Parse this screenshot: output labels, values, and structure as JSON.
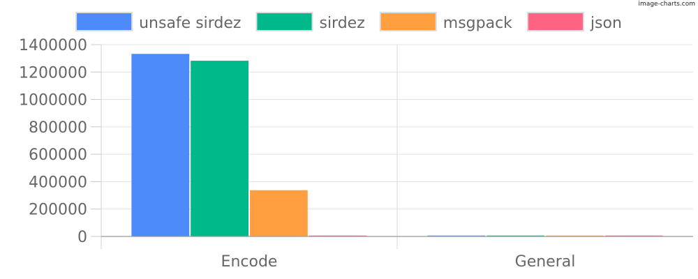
{
  "watermark": "image-charts.com",
  "chart_data": {
    "type": "bar",
    "categories": [
      "Encode",
      "General"
    ],
    "series": [
      {
        "name": "unsafe sirdez",
        "color": "#4c8bf9",
        "values": [
          1330000,
          0
        ]
      },
      {
        "name": "sirdez",
        "color": "#00b98a",
        "values": [
          1280000,
          0
        ]
      },
      {
        "name": "msgpack",
        "color": "#ff9f40",
        "values": [
          335000,
          0
        ]
      },
      {
        "name": "json",
        "color": "#ff6384",
        "values": [
          4000,
          0
        ]
      }
    ],
    "yticks": [
      "0",
      "200000",
      "400000",
      "600000",
      "800000",
      "1000000",
      "1200000",
      "1400000"
    ],
    "ylim": [
      0,
      1400000
    ],
    "legend_position": "top",
    "grid": true
  }
}
